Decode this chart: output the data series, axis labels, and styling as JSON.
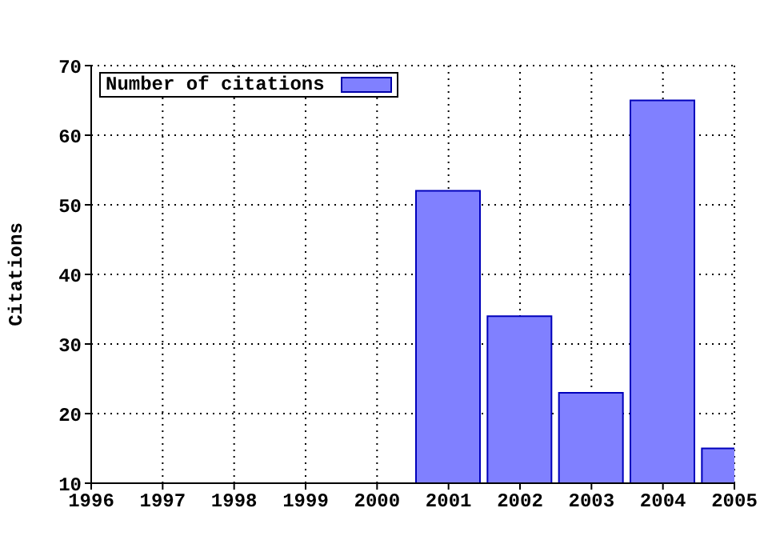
{
  "chart_data": {
    "type": "bar",
    "ylabel": "Citations",
    "x": [
      2001,
      2002,
      2003,
      2004,
      2005
    ],
    "series": [
      {
        "name": "Number of citations",
        "color": "#8080ff",
        "values": [
          52,
          34,
          23,
          65,
          15
        ]
      }
    ],
    "xlim": [
      1996,
      2005
    ],
    "xticks": [
      1996,
      1997,
      1998,
      1999,
      2000,
      2001,
      2002,
      2003,
      2004,
      2005
    ],
    "ylim": [
      10,
      70
    ],
    "yticks": [
      10,
      20,
      30,
      40,
      50,
      60,
      70
    ],
    "grid": true,
    "legend": "top left"
  }
}
